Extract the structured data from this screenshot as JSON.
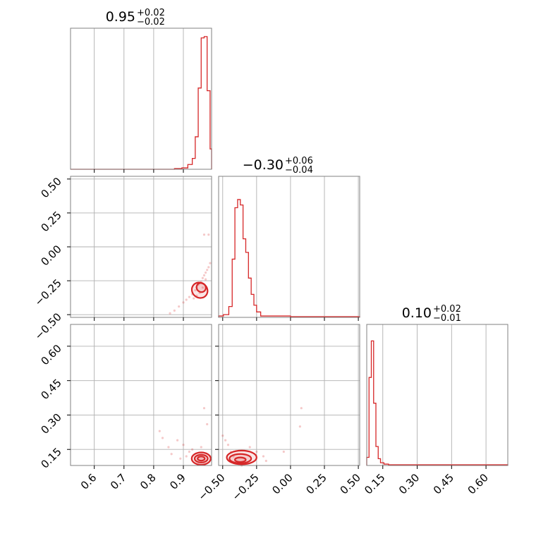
{
  "chart_data": [
    {
      "type": "histogram",
      "panel": "1d-param-1",
      "title": {
        "value": "0.95",
        "plus": "+0.02",
        "minus": "−0.02"
      },
      "xlim": [
        0.52,
        0.995
      ],
      "bins": [
        {
          "x": 0.855,
          "h": 0.0
        },
        {
          "x": 0.885,
          "h": 0.005
        },
        {
          "x": 0.905,
          "h": 0.01
        },
        {
          "x": 0.925,
          "h": 0.035
        },
        {
          "x": 0.935,
          "h": 0.08
        },
        {
          "x": 0.945,
          "h": 0.24
        },
        {
          "x": 0.955,
          "h": 0.6
        },
        {
          "x": 0.965,
          "h": 0.97
        },
        {
          "x": 0.975,
          "h": 0.98
        },
        {
          "x": 0.985,
          "h": 0.58
        },
        {
          "x": 0.995,
          "h": 0.15
        }
      ]
    },
    {
      "type": "histogram",
      "panel": "1d-param-2",
      "title": {
        "value": "−0.30",
        "plus": "+0.06",
        "minus": "−0.04"
      },
      "xlim": [
        -0.53,
        0.51
      ],
      "bins": [
        {
          "x": -0.52,
          "h": 0.01
        },
        {
          "x": -0.47,
          "h": 0.02
        },
        {
          "x": -0.44,
          "h": 0.08
        },
        {
          "x": -0.42,
          "h": 0.43
        },
        {
          "x": -0.4,
          "h": 0.81
        },
        {
          "x": -0.38,
          "h": 0.87
        },
        {
          "x": -0.36,
          "h": 0.83
        },
        {
          "x": -0.34,
          "h": 0.58
        },
        {
          "x": -0.32,
          "h": 0.48
        },
        {
          "x": -0.3,
          "h": 0.29
        },
        {
          "x": -0.28,
          "h": 0.17
        },
        {
          "x": -0.26,
          "h": 0.09
        },
        {
          "x": -0.24,
          "h": 0.04
        },
        {
          "x": -0.2,
          "h": 0.01
        },
        {
          "x": -0.1,
          "h": 0.01
        },
        {
          "x": 0.1,
          "h": 0.005
        }
      ]
    },
    {
      "type": "histogram",
      "panel": "1d-param-3",
      "title": {
        "value": "0.10",
        "plus": "+0.02",
        "minus": "−0.01"
      },
      "xlim": [
        0.08,
        0.695
      ],
      "bins": [
        {
          "x": 0.085,
          "h": 0.06
        },
        {
          "x": 0.095,
          "h": 0.65
        },
        {
          "x": 0.105,
          "h": 0.92
        },
        {
          "x": 0.115,
          "h": 0.46
        },
        {
          "x": 0.125,
          "h": 0.14
        },
        {
          "x": 0.135,
          "h": 0.05
        },
        {
          "x": 0.145,
          "h": 0.02
        },
        {
          "x": 0.165,
          "h": 0.01
        },
        {
          "x": 0.185,
          "h": 0.005
        }
      ]
    },
    {
      "type": "scatter",
      "panel": "2d-param-1-vs-param-2",
      "xlim": [
        0.52,
        0.995
      ],
      "ylim": [
        -0.52,
        0.52
      ],
      "points": [
        [
          0.855,
          -0.49
        ],
        [
          0.87,
          -0.47
        ],
        [
          0.885,
          -0.44
        ],
        [
          0.9,
          -0.41
        ],
        [
          0.91,
          -0.39
        ],
        [
          0.92,
          -0.37
        ],
        [
          0.93,
          -0.35
        ],
        [
          0.94,
          -0.32
        ],
        [
          0.945,
          -0.3
        ],
        [
          0.95,
          -0.28
        ],
        [
          0.96,
          -0.26
        ],
        [
          0.965,
          -0.23
        ],
        [
          0.97,
          -0.21
        ],
        [
          0.975,
          -0.19
        ],
        [
          0.98,
          -0.17
        ],
        [
          0.985,
          -0.15
        ],
        [
          0.99,
          -0.12
        ],
        [
          0.97,
          0.09
        ],
        [
          0.985,
          0.09
        ],
        [
          0.955,
          -0.34
        ],
        [
          0.965,
          -0.3
        ],
        [
          0.975,
          -0.24
        ],
        [
          0.945,
          -0.36
        ],
        [
          0.935,
          -0.38
        ]
      ],
      "contours": [
        {
          "cx": 0.955,
          "cy": -0.32,
          "rx": 0.025,
          "ry": 0.06,
          "angle": -52
        },
        {
          "cx": 0.96,
          "cy": -0.3,
          "rx": 0.015,
          "ry": 0.035,
          "angle": -52
        }
      ]
    },
    {
      "type": "scatter",
      "panel": "2d-param-1-vs-param-3",
      "xlim": [
        0.52,
        0.995
      ],
      "ylim": [
        0.08,
        0.695
      ],
      "points": [
        [
          0.82,
          0.23
        ],
        [
          0.83,
          0.2
        ],
        [
          0.85,
          0.16
        ],
        [
          0.88,
          0.19
        ],
        [
          0.9,
          0.17
        ],
        [
          0.92,
          0.14
        ],
        [
          0.95,
          0.12
        ],
        [
          0.97,
          0.33
        ],
        [
          0.98,
          0.26
        ],
        [
          0.91,
          0.12
        ],
        [
          0.93,
          0.15
        ],
        [
          0.96,
          0.16
        ],
        [
          0.99,
          0.12
        ],
        [
          0.86,
          0.13
        ],
        [
          0.89,
          0.11
        ]
      ],
      "contours": [
        {
          "cx": 0.96,
          "cy": 0.11,
          "rx": 0.032,
          "ry": 0.027,
          "angle": 0
        },
        {
          "cx": 0.96,
          "cy": 0.11,
          "rx": 0.022,
          "ry": 0.017,
          "angle": 0
        },
        {
          "cx": 0.96,
          "cy": 0.11,
          "rx": 0.012,
          "ry": 0.009,
          "angle": 0
        }
      ]
    },
    {
      "type": "scatter",
      "panel": "2d-param-2-vs-param-3",
      "xlim": [
        -0.53,
        0.51
      ],
      "ylim": [
        0.08,
        0.695
      ],
      "points": [
        [
          -0.5,
          0.21
        ],
        [
          -0.48,
          0.19
        ],
        [
          -0.46,
          0.17
        ],
        [
          -0.44,
          0.14
        ],
        [
          -0.42,
          0.12
        ],
        [
          -0.3,
          0.16
        ],
        [
          -0.25,
          0.14
        ],
        [
          -0.2,
          0.12
        ],
        [
          -0.18,
          0.1
        ],
        [
          -0.05,
          0.14
        ],
        [
          0.07,
          0.25
        ],
        [
          0.08,
          0.33
        ],
        [
          -0.32,
          0.09
        ],
        [
          -0.36,
          0.08
        ]
      ],
      "contours": [
        {
          "cx": -0.36,
          "cy": 0.115,
          "rx": 0.11,
          "ry": 0.03,
          "angle": 0
        },
        {
          "cx": -0.37,
          "cy": 0.11,
          "rx": 0.08,
          "ry": 0.02,
          "angle": 0
        },
        {
          "cx": -0.37,
          "cy": 0.105,
          "rx": 0.04,
          "ry": 0.01,
          "angle": 0
        }
      ]
    }
  ],
  "ticks": {
    "param1": [
      "0.6",
      "0.7",
      "0.8",
      "0.9"
    ],
    "param1_values": [
      0.6,
      0.7,
      0.8,
      0.9
    ],
    "param2": [
      "−0.50",
      "−0.25",
      "0.00",
      "0.25",
      "0.50"
    ],
    "param2_values": [
      -0.5,
      -0.25,
      0.0,
      0.25,
      0.5
    ],
    "param3": [
      "0.15",
      "0.30",
      "0.45",
      "0.60"
    ],
    "param3_values": [
      0.15,
      0.3,
      0.45,
      0.6
    ]
  },
  "colors": {
    "series": "#d62728",
    "grid": "#b0b0b0",
    "frame": "#808080"
  }
}
